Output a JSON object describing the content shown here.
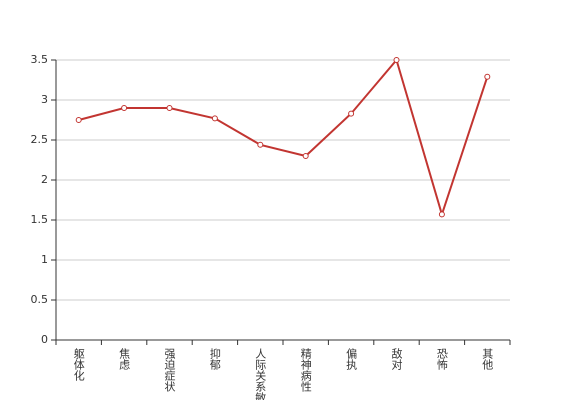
{
  "chart_data": {
    "type": "line",
    "categories": [
      "躯体化",
      "焦虑",
      "强迫症状",
      "抑郁",
      "人际关系敏感",
      "精神病性",
      "偏执",
      "敌对",
      "恐怖",
      "其他"
    ],
    "values": [
      2.75,
      2.9,
      2.9,
      2.77,
      2.44,
      2.3,
      2.83,
      3.5,
      1.57,
      3.29
    ],
    "color": "#c23531",
    "ylim": [
      0,
      3.5
    ],
    "yticks": [
      0,
      0.5,
      1,
      1.5,
      2,
      2.5,
      3,
      3.5
    ],
    "grid": true
  }
}
